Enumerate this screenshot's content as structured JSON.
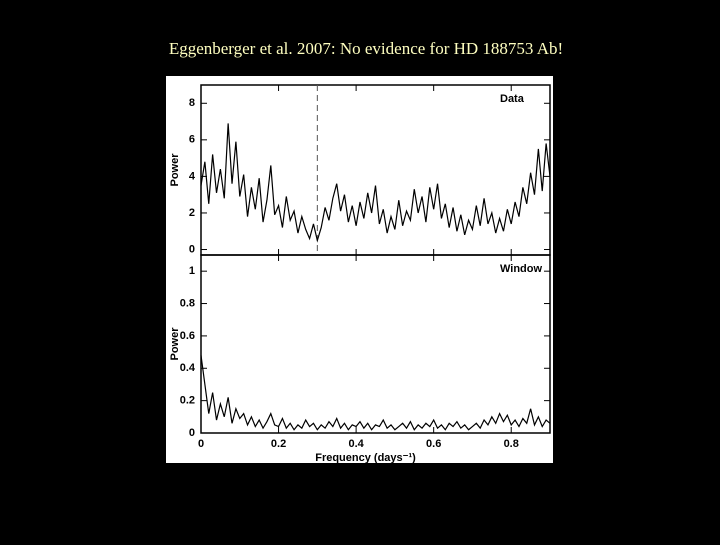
{
  "slide_title": "Eggenberger et al. 2007: No evidence for HD 188753 Ab!",
  "chart_data": [
    {
      "type": "line",
      "annotation": "Data",
      "ylabel": "Power",
      "color": "#000000",
      "marker_x": 0.3,
      "x": [
        0,
        0.01,
        0.02,
        0.03,
        0.04,
        0.05,
        0.06,
        0.07,
        0.08,
        0.09,
        0.1,
        0.11,
        0.12,
        0.13,
        0.14,
        0.15,
        0.16,
        0.17,
        0.18,
        0.19,
        0.2,
        0.21,
        0.22,
        0.23,
        0.24,
        0.25,
        0.26,
        0.27,
        0.28,
        0.29,
        0.3,
        0.31,
        0.32,
        0.33,
        0.34,
        0.35,
        0.36,
        0.37,
        0.38,
        0.39,
        0.4,
        0.41,
        0.42,
        0.43,
        0.44,
        0.45,
        0.46,
        0.47,
        0.48,
        0.49,
        0.5,
        0.51,
        0.52,
        0.53,
        0.54,
        0.55,
        0.56,
        0.57,
        0.58,
        0.59,
        0.6,
        0.61,
        0.62,
        0.63,
        0.64,
        0.65,
        0.66,
        0.67,
        0.68,
        0.69,
        0.7,
        0.71,
        0.72,
        0.73,
        0.74,
        0.75,
        0.76,
        0.77,
        0.78,
        0.79,
        0.8,
        0.81,
        0.82,
        0.83,
        0.84,
        0.85,
        0.86,
        0.87,
        0.88,
        0.89,
        0.9
      ],
      "values": [
        3.5,
        4.8,
        2.5,
        5.2,
        3.1,
        4.4,
        2.8,
        6.9,
        3.6,
        5.9,
        2.9,
        4.1,
        1.8,
        3.4,
        2.2,
        3.9,
        1.5,
        2.7,
        4.6,
        1.9,
        2.4,
        1.2,
        2.9,
        1.6,
        2.1,
        0.9,
        1.8,
        1.1,
        0.6,
        1.4,
        0.5,
        1.2,
        2.3,
        1.6,
        2.8,
        3.6,
        2.1,
        3.0,
        1.5,
        2.4,
        1.3,
        2.6,
        1.7,
        3.1,
        2.0,
        3.5,
        1.4,
        2.2,
        0.9,
        1.8,
        1.1,
        2.7,
        1.3,
        2.1,
        1.6,
        3.3,
        2.0,
        2.9,
        1.5,
        3.4,
        2.2,
        3.6,
        1.7,
        2.5,
        1.2,
        2.3,
        1.0,
        1.9,
        0.8,
        1.6,
        1.1,
        2.4,
        1.3,
        2.8,
        1.4,
        2.0,
        0.9,
        1.7,
        1.0,
        2.2,
        1.4,
        2.6,
        1.8,
        3.4,
        2.5,
        4.2,
        3.0,
        5.5,
        3.2,
        5.8,
        4.0
      ],
      "xlim": [
        0,
        0.9
      ],
      "ylim": [
        -0.3,
        9
      ],
      "yticks": [
        0,
        2,
        4,
        6,
        8
      ],
      "xticks": [
        0,
        0.2,
        0.4,
        0.6,
        0.8
      ]
    },
    {
      "type": "line",
      "annotation": "Window",
      "ylabel": "Power",
      "xlabel": "Frequency (days⁻¹)",
      "color": "#000000",
      "x": [
        0,
        0.01,
        0.02,
        0.03,
        0.04,
        0.05,
        0.06,
        0.07,
        0.08,
        0.09,
        0.1,
        0.11,
        0.12,
        0.13,
        0.14,
        0.15,
        0.16,
        0.17,
        0.18,
        0.19,
        0.2,
        0.21,
        0.22,
        0.23,
        0.24,
        0.25,
        0.26,
        0.27,
        0.28,
        0.29,
        0.3,
        0.31,
        0.32,
        0.33,
        0.34,
        0.35,
        0.36,
        0.37,
        0.38,
        0.39,
        0.4,
        0.41,
        0.42,
        0.43,
        0.44,
        0.45,
        0.46,
        0.47,
        0.48,
        0.49,
        0.5,
        0.51,
        0.52,
        0.53,
        0.54,
        0.55,
        0.56,
        0.57,
        0.58,
        0.59,
        0.6,
        0.61,
        0.62,
        0.63,
        0.64,
        0.65,
        0.66,
        0.67,
        0.68,
        0.69,
        0.7,
        0.71,
        0.72,
        0.73,
        0.74,
        0.75,
        0.76,
        0.77,
        0.78,
        0.79,
        0.8,
        0.81,
        0.82,
        0.83,
        0.84,
        0.85,
        0.86,
        0.87,
        0.88,
        0.89,
        0.9
      ],
      "values": [
        0.48,
        0.3,
        0.12,
        0.25,
        0.08,
        0.18,
        0.1,
        0.22,
        0.06,
        0.15,
        0.09,
        0.12,
        0.05,
        0.1,
        0.04,
        0.08,
        0.03,
        0.07,
        0.12,
        0.05,
        0.04,
        0.09,
        0.03,
        0.06,
        0.02,
        0.05,
        0.03,
        0.08,
        0.04,
        0.06,
        0.02,
        0.05,
        0.03,
        0.07,
        0.04,
        0.09,
        0.03,
        0.06,
        0.02,
        0.05,
        0.04,
        0.07,
        0.03,
        0.06,
        0.02,
        0.05,
        0.04,
        0.08,
        0.03,
        0.05,
        0.02,
        0.04,
        0.06,
        0.03,
        0.07,
        0.02,
        0.05,
        0.03,
        0.06,
        0.04,
        0.08,
        0.03,
        0.05,
        0.02,
        0.06,
        0.04,
        0.07,
        0.03,
        0.05,
        0.02,
        0.04,
        0.06,
        0.03,
        0.08,
        0.05,
        0.1,
        0.06,
        0.12,
        0.07,
        0.11,
        0.05,
        0.08,
        0.04,
        0.09,
        0.06,
        0.15,
        0.05,
        0.1,
        0.04,
        0.08,
        0.06
      ],
      "xlim": [
        0,
        0.9
      ],
      "ylim": [
        0,
        1.1
      ],
      "yticks": [
        0,
        0.2,
        0.4,
        0.6,
        0.8,
        1
      ],
      "xticks": [
        0,
        0.2,
        0.4,
        0.6,
        0.8
      ]
    }
  ]
}
